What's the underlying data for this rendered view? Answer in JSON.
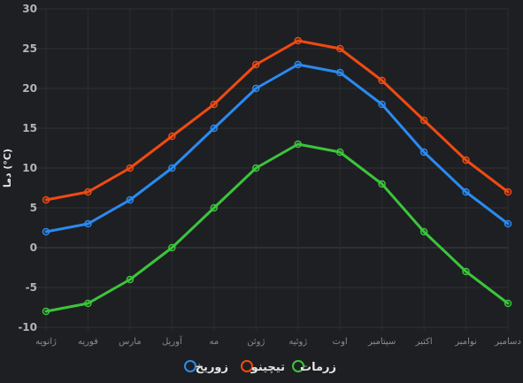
{
  "chart_data": {
    "type": "line",
    "categories": [
      "ژانویه",
      "فوریه",
      "مارس",
      "آوریل",
      "مه",
      "ژوئن",
      "ژوئیه",
      "اوت",
      "سپتامبر",
      "اکتبر",
      "نوامبر",
      "دسامبر"
    ],
    "series": [
      {
        "name": "زوریخ",
        "color": "#2a8af0",
        "values": [
          2,
          3,
          6,
          10,
          15,
          20,
          23,
          22,
          18,
          12,
          7,
          3
        ]
      },
      {
        "name": "تیچینو",
        "color": "#ef4a12",
        "values": [
          6,
          7,
          10,
          14,
          18,
          23,
          26,
          25,
          21,
          16,
          11,
          7
        ]
      },
      {
        "name": "زرمات",
        "color": "#3cc43c",
        "values": [
          -8,
          -7,
          -4,
          0,
          5,
          10,
          13,
          12,
          8,
          2,
          -3,
          -7
        ]
      }
    ],
    "ylabel": "دما (°C)",
    "ylim": [
      -10,
      30
    ],
    "yticks": [
      -10,
      -5,
      0,
      5,
      10,
      15,
      20,
      25,
      30
    ],
    "grid": true,
    "legend_position": "bottom"
  }
}
